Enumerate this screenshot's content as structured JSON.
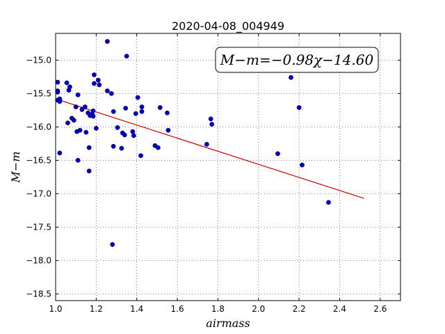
{
  "chart_data": {
    "type": "scatter",
    "title": "2020-04-08_004949",
    "xlabel": "airmass",
    "ylabel": "M−m",
    "xlim": [
      1.0,
      2.7
    ],
    "ylim": [
      -18.6,
      -14.6
    ],
    "y_inverted": true,
    "grid": true,
    "x_ticks": [
      1.0,
      1.2,
      1.4,
      1.6,
      1.8,
      2.0,
      2.2,
      2.4,
      2.6
    ],
    "x_tick_labels": [
      "1.0",
      "1.2",
      "1.4",
      "1.6",
      "1.8",
      "2.0",
      "2.2",
      "2.4",
      "2.6"
    ],
    "y_ticks": [
      -15.0,
      -15.5,
      -16.0,
      -16.5,
      -17.0,
      -17.5,
      -18.0,
      -18.5
    ],
    "y_tick_labels": [
      "−15.0",
      "−15.5",
      "−16.0",
      "−16.5",
      "−17.0",
      "−17.5",
      "−18.0",
      "−18.5"
    ],
    "annotation": "M−m=−0.98χ−14.60",
    "point_color": "#0000cc",
    "fit_color": "#cc0000",
    "fit": {
      "slope": -0.98,
      "intercept": -14.6,
      "x_start": 1.0,
      "x_end": 2.52
    },
    "points": [
      [
        1.01,
        -15.33
      ],
      [
        1.01,
        -15.46
      ],
      [
        1.01,
        -15.48
      ],
      [
        1.01,
        -15.6
      ],
      [
        1.02,
        -15.58
      ],
      [
        1.02,
        -15.62
      ],
      [
        1.02,
        -15.6
      ],
      [
        1.02,
        -16.39
      ],
      [
        1.055,
        -15.34
      ],
      [
        1.06,
        -15.94
      ],
      [
        1.065,
        -15.45
      ],
      [
        1.07,
        -15.4
      ],
      [
        1.08,
        -15.87
      ],
      [
        1.09,
        -15.9
      ],
      [
        1.1,
        -15.7
      ],
      [
        1.105,
        -16.07
      ],
      [
        1.11,
        -16.5
      ],
      [
        1.11,
        -15.52
      ],
      [
        1.12,
        -16.05
      ],
      [
        1.13,
        -15.74
      ],
      [
        1.145,
        -15.7
      ],
      [
        1.15,
        -16.08
      ],
      [
        1.16,
        -15.79
      ],
      [
        1.165,
        -16.31
      ],
      [
        1.165,
        -16.66
      ],
      [
        1.17,
        -15.83
      ],
      [
        1.18,
        -15.81
      ],
      [
        1.185,
        -15.76
      ],
      [
        1.185,
        -15.84
      ],
      [
        1.19,
        -15.22
      ],
      [
        1.19,
        -15.35
      ],
      [
        1.2,
        -16.02
      ],
      [
        1.21,
        -15.3
      ],
      [
        1.215,
        -15.37
      ],
      [
        1.255,
        -14.72
      ],
      [
        1.255,
        -15.46
      ],
      [
        1.275,
        -15.5
      ],
      [
        1.28,
        -17.76
      ],
      [
        1.285,
        -16.29
      ],
      [
        1.285,
        -15.77
      ],
      [
        1.305,
        -16.01
      ],
      [
        1.325,
        -16.32
      ],
      [
        1.33,
        -16.09
      ],
      [
        1.34,
        -16.12
      ],
      [
        1.345,
        -15.72
      ],
      [
        1.35,
        -14.94
      ],
      [
        1.38,
        -16.07
      ],
      [
        1.385,
        -16.13
      ],
      [
        1.395,
        -15.8
      ],
      [
        1.405,
        -15.56
      ],
      [
        1.42,
        -16.43
      ],
      [
        1.425,
        -15.7
      ],
      [
        1.425,
        -15.77
      ],
      [
        1.49,
        -16.28
      ],
      [
        1.505,
        -16.31
      ],
      [
        1.515,
        -15.71
      ],
      [
        1.55,
        -15.79
      ],
      [
        1.555,
        -16.05
      ],
      [
        1.745,
        -16.26
      ],
      [
        1.765,
        -15.88
      ],
      [
        1.77,
        -15.96
      ],
      [
        2.095,
        -16.4
      ],
      [
        2.16,
        -15.26
      ],
      [
        2.2,
        -15.71
      ],
      [
        2.215,
        -16.57
      ],
      [
        2.345,
        -17.13
      ]
    ]
  }
}
